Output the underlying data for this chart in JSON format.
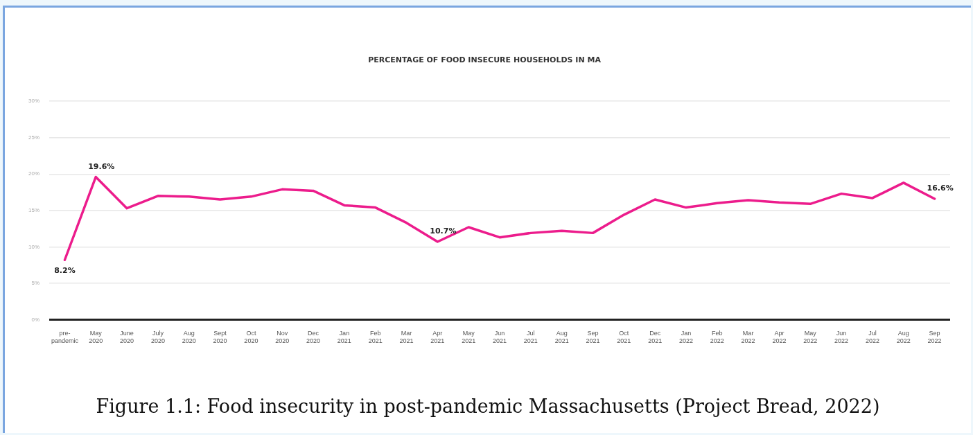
{
  "chart_data": {
    "type": "line",
    "title": "PERCENTAGE OF FOOD INSECURE HOUSEHOLDS IN MA",
    "categories": [
      "pre-\npandemic",
      "May\n2020",
      "June\n2020",
      "July\n2020",
      "Aug\n2020",
      "Sept\n2020",
      "Oct\n2020",
      "Nov\n2020",
      "Dec\n2020",
      "Jan\n2021",
      "Feb\n2021",
      "Mar\n2021",
      "Apr\n2021",
      "May\n2021",
      "Jun\n2021",
      "Jul\n2021",
      "Aug\n2021",
      "Sep\n2021",
      "Oct\n2021",
      "Dec\n2021",
      "Jan\n2022",
      "Feb\n2022",
      "Mar\n2022",
      "Apr\n2022",
      "May\n2022",
      "Jun\n2022",
      "Jul\n2022",
      "Aug\n2022",
      "Sep\n2022"
    ],
    "series": [
      {
        "color": "#ec1c8c",
        "values": [
          8.2,
          19.6,
          15.3,
          17.0,
          16.9,
          16.5,
          16.9,
          17.9,
          17.7,
          15.7,
          15.4,
          13.3,
          10.7,
          12.7,
          11.3,
          11.9,
          12.2,
          11.9,
          14.4,
          16.5,
          15.4,
          16.0,
          16.4,
          16.1,
          15.9,
          17.3,
          16.7,
          18.8,
          16.6
        ],
        "value_labels": [
          "8.2%",
          "19.6%",
          null,
          null,
          null,
          null,
          null,
          null,
          null,
          null,
          null,
          null,
          "10.7%",
          null,
          null,
          null,
          null,
          null,
          null,
          null,
          null,
          null,
          null,
          null,
          null,
          null,
          null,
          null,
          "16.6%"
        ]
      }
    ],
    "ylim": [
      0,
      30
    ],
    "yticks": [
      {
        "value": 0,
        "label": "0%"
      },
      {
        "value": 5,
        "label": "5%"
      },
      {
        "value": 10,
        "label": "10%"
      },
      {
        "value": 15,
        "label": "15%"
      },
      {
        "value": 20,
        "label": "20%"
      },
      {
        "value": 25,
        "label": "25%"
      },
      {
        "value": 30,
        "label": "30%"
      }
    ],
    "grid": "y",
    "legend": false,
    "marker": "none",
    "line_style": "solid",
    "annotations": [
      "Figure 1.1: Food insecurity in post-pandemic Massachusetts (Project Bread, 2022)"
    ]
  }
}
